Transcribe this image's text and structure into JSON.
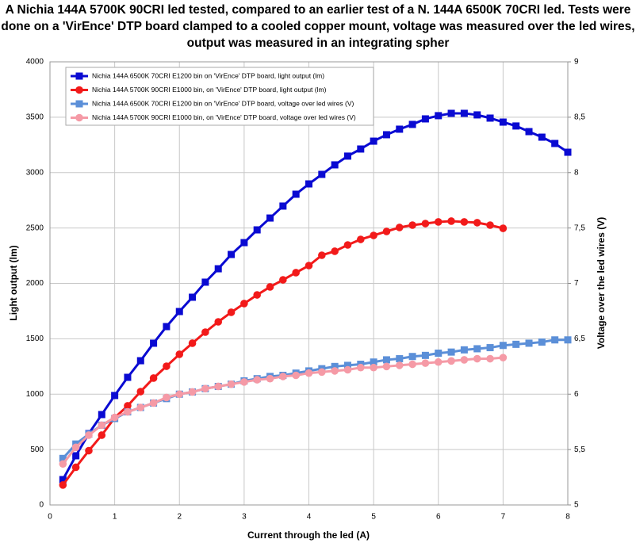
{
  "chart_data": {
    "type": "line",
    "title": "A Nichia 144A 5700K 90CRI led tested, compared to an earlier test of a N. 144A 6500K 70CRI led. Tests were done on a 'VirEnce' DTP board clamped to a cooled copper mount, voltage was measured over the led wires, output was measured in an integrating spher",
    "x_label": "Current through the led (A)",
    "y_label": "Light output (lm)",
    "y2_label": "Voltage over the led wires (V)",
    "x": [
      0.2,
      0.4,
      0.6,
      0.8,
      1.0,
      1.2,
      1.4,
      1.6,
      1.8,
      2.0,
      2.2,
      2.4,
      2.6,
      2.8,
      3.0,
      3.2,
      3.4,
      3.6,
      3.8,
      4.0,
      4.2,
      4.4,
      4.6,
      4.8,
      5.0,
      5.2,
      5.4,
      5.6,
      5.8,
      6.0,
      6.2,
      6.4,
      6.6,
      6.8,
      7.0,
      7.2,
      7.4,
      7.6,
      7.8,
      8.0
    ],
    "xlim": [
      0,
      8
    ],
    "xticks": [
      0,
      1,
      2,
      3,
      4,
      5,
      6,
      7,
      8
    ],
    "ylim": [
      0,
      4000
    ],
    "yticks": [
      0,
      500,
      1000,
      1500,
      2000,
      2500,
      3000,
      3500,
      4000
    ],
    "y2lim": [
      5,
      9
    ],
    "y2ticks": [
      5,
      {
        "value": 5.5,
        "label": "5,5"
      },
      6,
      {
        "value": 6.5,
        "label": "6,5"
      },
      7,
      {
        "value": 7.5,
        "label": "7,5"
      },
      8,
      {
        "value": 8.5,
        "label": "8,5"
      },
      9
    ],
    "grid": true,
    "legend": "upper left",
    "series": [
      {
        "name": "Nichia 144A 6500K 70CRI E1200 bin on 'VirEnce' DTP board, light output (lm)",
        "color": "#0a0ad2",
        "marker": "square",
        "values": [
          229,
          444,
          644,
          816,
          988,
          1152,
          1302,
          1460,
          1610,
          1746,
          1875,
          2011,
          2132,
          2261,
          2368,
          2483,
          2590,
          2698,
          2805,
          2898,
          2984,
          3070,
          3149,
          3213,
          3284,
          3342,
          3392,
          3435,
          3485,
          3514,
          3535,
          3535,
          3521,
          3492,
          3456,
          3421,
          3370,
          3320,
          3263,
          3184
        ]
      },
      {
        "name": "Nichia 144A 5700K 90CRI E1000 bin, on 'VirEnce' DTP board, light output (lm)",
        "color": "#f21a1a",
        "marker": "circle",
        "values": [
          180,
          340,
          490,
          630,
          787,
          895,
          1023,
          1145,
          1252,
          1360,
          1460,
          1560,
          1653,
          1739,
          1818,
          1896,
          1968,
          2032,
          2097,
          2161,
          2254,
          2290,
          2347,
          2397,
          2433,
          2469,
          2505,
          2526,
          2540,
          2555,
          2562,
          2555,
          2548,
          2526,
          2497,
          null,
          null,
          null,
          null,
          null
        ]
      },
      {
        "name": "Nichia 144A 6500K 70CRI E1200 bin on 'VirEnce' DTP board, voltage over led wires (V)",
        "color": "#5b8fd8",
        "marker": "square",
        "axis": "y2",
        "values": [
          5.42,
          5.55,
          5.64,
          5.72,
          5.78,
          5.84,
          5.88,
          5.92,
          5.96,
          6.0,
          6.02,
          6.05,
          6.07,
          6.09,
          6.12,
          6.14,
          6.16,
          6.17,
          6.19,
          6.21,
          6.23,
          6.25,
          6.26,
          6.27,
          6.29,
          6.31,
          6.32,
          6.34,
          6.35,
          6.37,
          6.38,
          6.4,
          6.41,
          6.42,
          6.44,
          6.45,
          6.46,
          6.47,
          6.49,
          6.49
        ]
      },
      {
        "name": "Nichia 144A 5700K 90CRI E1000 bin, on 'VirEnce' DTP board, voltage over led wires (V)",
        "color": "#f59aa6",
        "marker": "circle",
        "axis": "y2",
        "values": [
          5.37,
          5.52,
          5.63,
          5.72,
          5.79,
          5.84,
          5.88,
          5.92,
          5.97,
          6.0,
          6.02,
          6.05,
          6.07,
          6.09,
          6.11,
          6.13,
          6.14,
          6.16,
          6.17,
          6.19,
          6.2,
          6.21,
          6.22,
          6.24,
          6.24,
          6.25,
          6.26,
          6.27,
          6.28,
          6.29,
          6.3,
          6.31,
          6.32,
          6.32,
          6.33,
          null,
          null,
          null,
          null,
          null
        ]
      }
    ]
  }
}
